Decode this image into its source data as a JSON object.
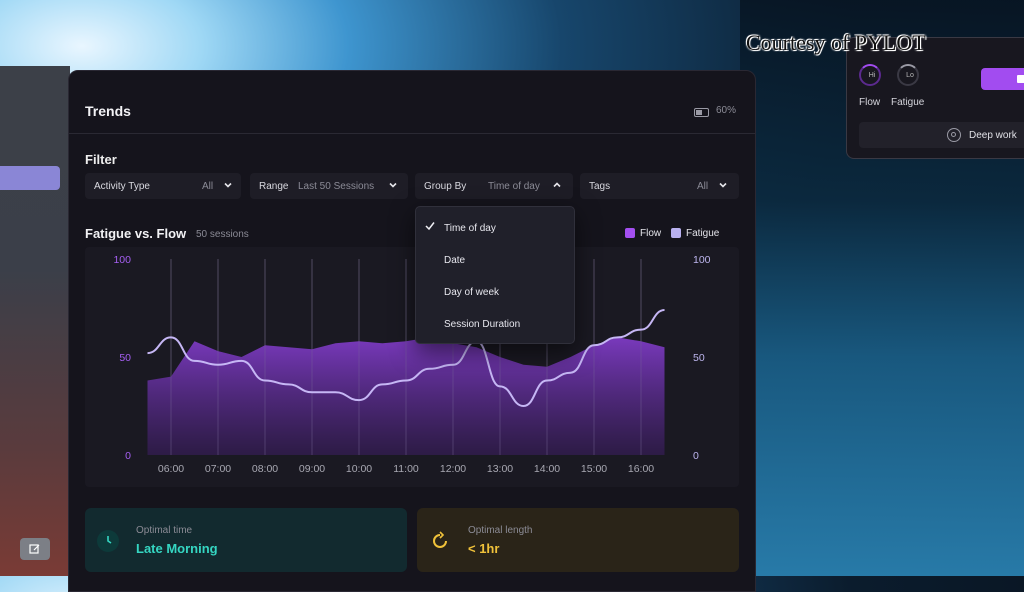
{
  "watermark": "Courtesy of PYLOT",
  "header": {
    "title": "Trends",
    "battery_pct": "60%"
  },
  "filter": {
    "title": "Filter",
    "activity_type": {
      "label": "Activity Type",
      "value": "All"
    },
    "range": {
      "label": "Range",
      "value": "Last 50 Sessions"
    },
    "group_by": {
      "label": "Group By",
      "value": "Time of day"
    },
    "tags": {
      "label": "Tags",
      "value": "All"
    }
  },
  "dropdown": {
    "options": [
      "Time of day",
      "Date",
      "Day of week",
      "Session Duration"
    ],
    "selected": "Time of day"
  },
  "chart": {
    "title": "Fatigue vs. Flow",
    "subtitle": "50 sessions",
    "legend": {
      "flow": "Flow",
      "fatigue": "Fatigue"
    },
    "colors": {
      "flow": "#8a3fd8",
      "fatigue": "#c6b7f5",
      "flow_legend": "#a34ff0",
      "fatigue_legend": "#b9b1f0"
    }
  },
  "chart_data": {
    "type": "area",
    "title": "Fatigue vs. Flow",
    "categories": [
      "06:00",
      "07:00",
      "08:00",
      "09:00",
      "10:00",
      "11:00",
      "12:00",
      "13:00",
      "14:00",
      "15:00",
      "16:00"
    ],
    "y_left_ticks": [
      "100",
      "50",
      "0"
    ],
    "y_right_ticks": [
      "100",
      "50",
      "0"
    ],
    "ylim": [
      0,
      100
    ],
    "grid": true,
    "legend_position": "top-right",
    "x": [
      5.5,
      6.0,
      6.5,
      7.0,
      7.5,
      8.0,
      8.5,
      9.0,
      9.5,
      10.0,
      10.5,
      11.0,
      11.5,
      12.0,
      12.5,
      13.0,
      13.5,
      14.0,
      14.5,
      15.0,
      15.5,
      16.0,
      16.5
    ],
    "series": [
      {
        "name": "Flow",
        "values": [
          38,
          40,
          58,
          53,
          50,
          56,
          55,
          54,
          57,
          58,
          57,
          58,
          60,
          57,
          55,
          50,
          46,
          45,
          50,
          56,
          60,
          58,
          55
        ]
      },
      {
        "name": "Fatigue",
        "values": [
          52,
          60,
          48,
          46,
          48,
          38,
          36,
          32,
          32,
          28,
          36,
          38,
          44,
          46,
          58,
          35,
          25,
          38,
          42,
          56,
          60,
          64,
          74
        ]
      }
    ]
  },
  "cards": [
    {
      "label": "Optimal time",
      "value": "Late Morning",
      "color": "#35d6c2"
    },
    {
      "label": "Optimal length",
      "value": "< 1hr",
      "color": "#f0c23a"
    }
  ],
  "mini": {
    "flow": {
      "label": "Flow",
      "level": "Hi"
    },
    "fatigue": {
      "label": "Fatigue",
      "level": "Lo"
    },
    "deep_work": "Deep work"
  }
}
